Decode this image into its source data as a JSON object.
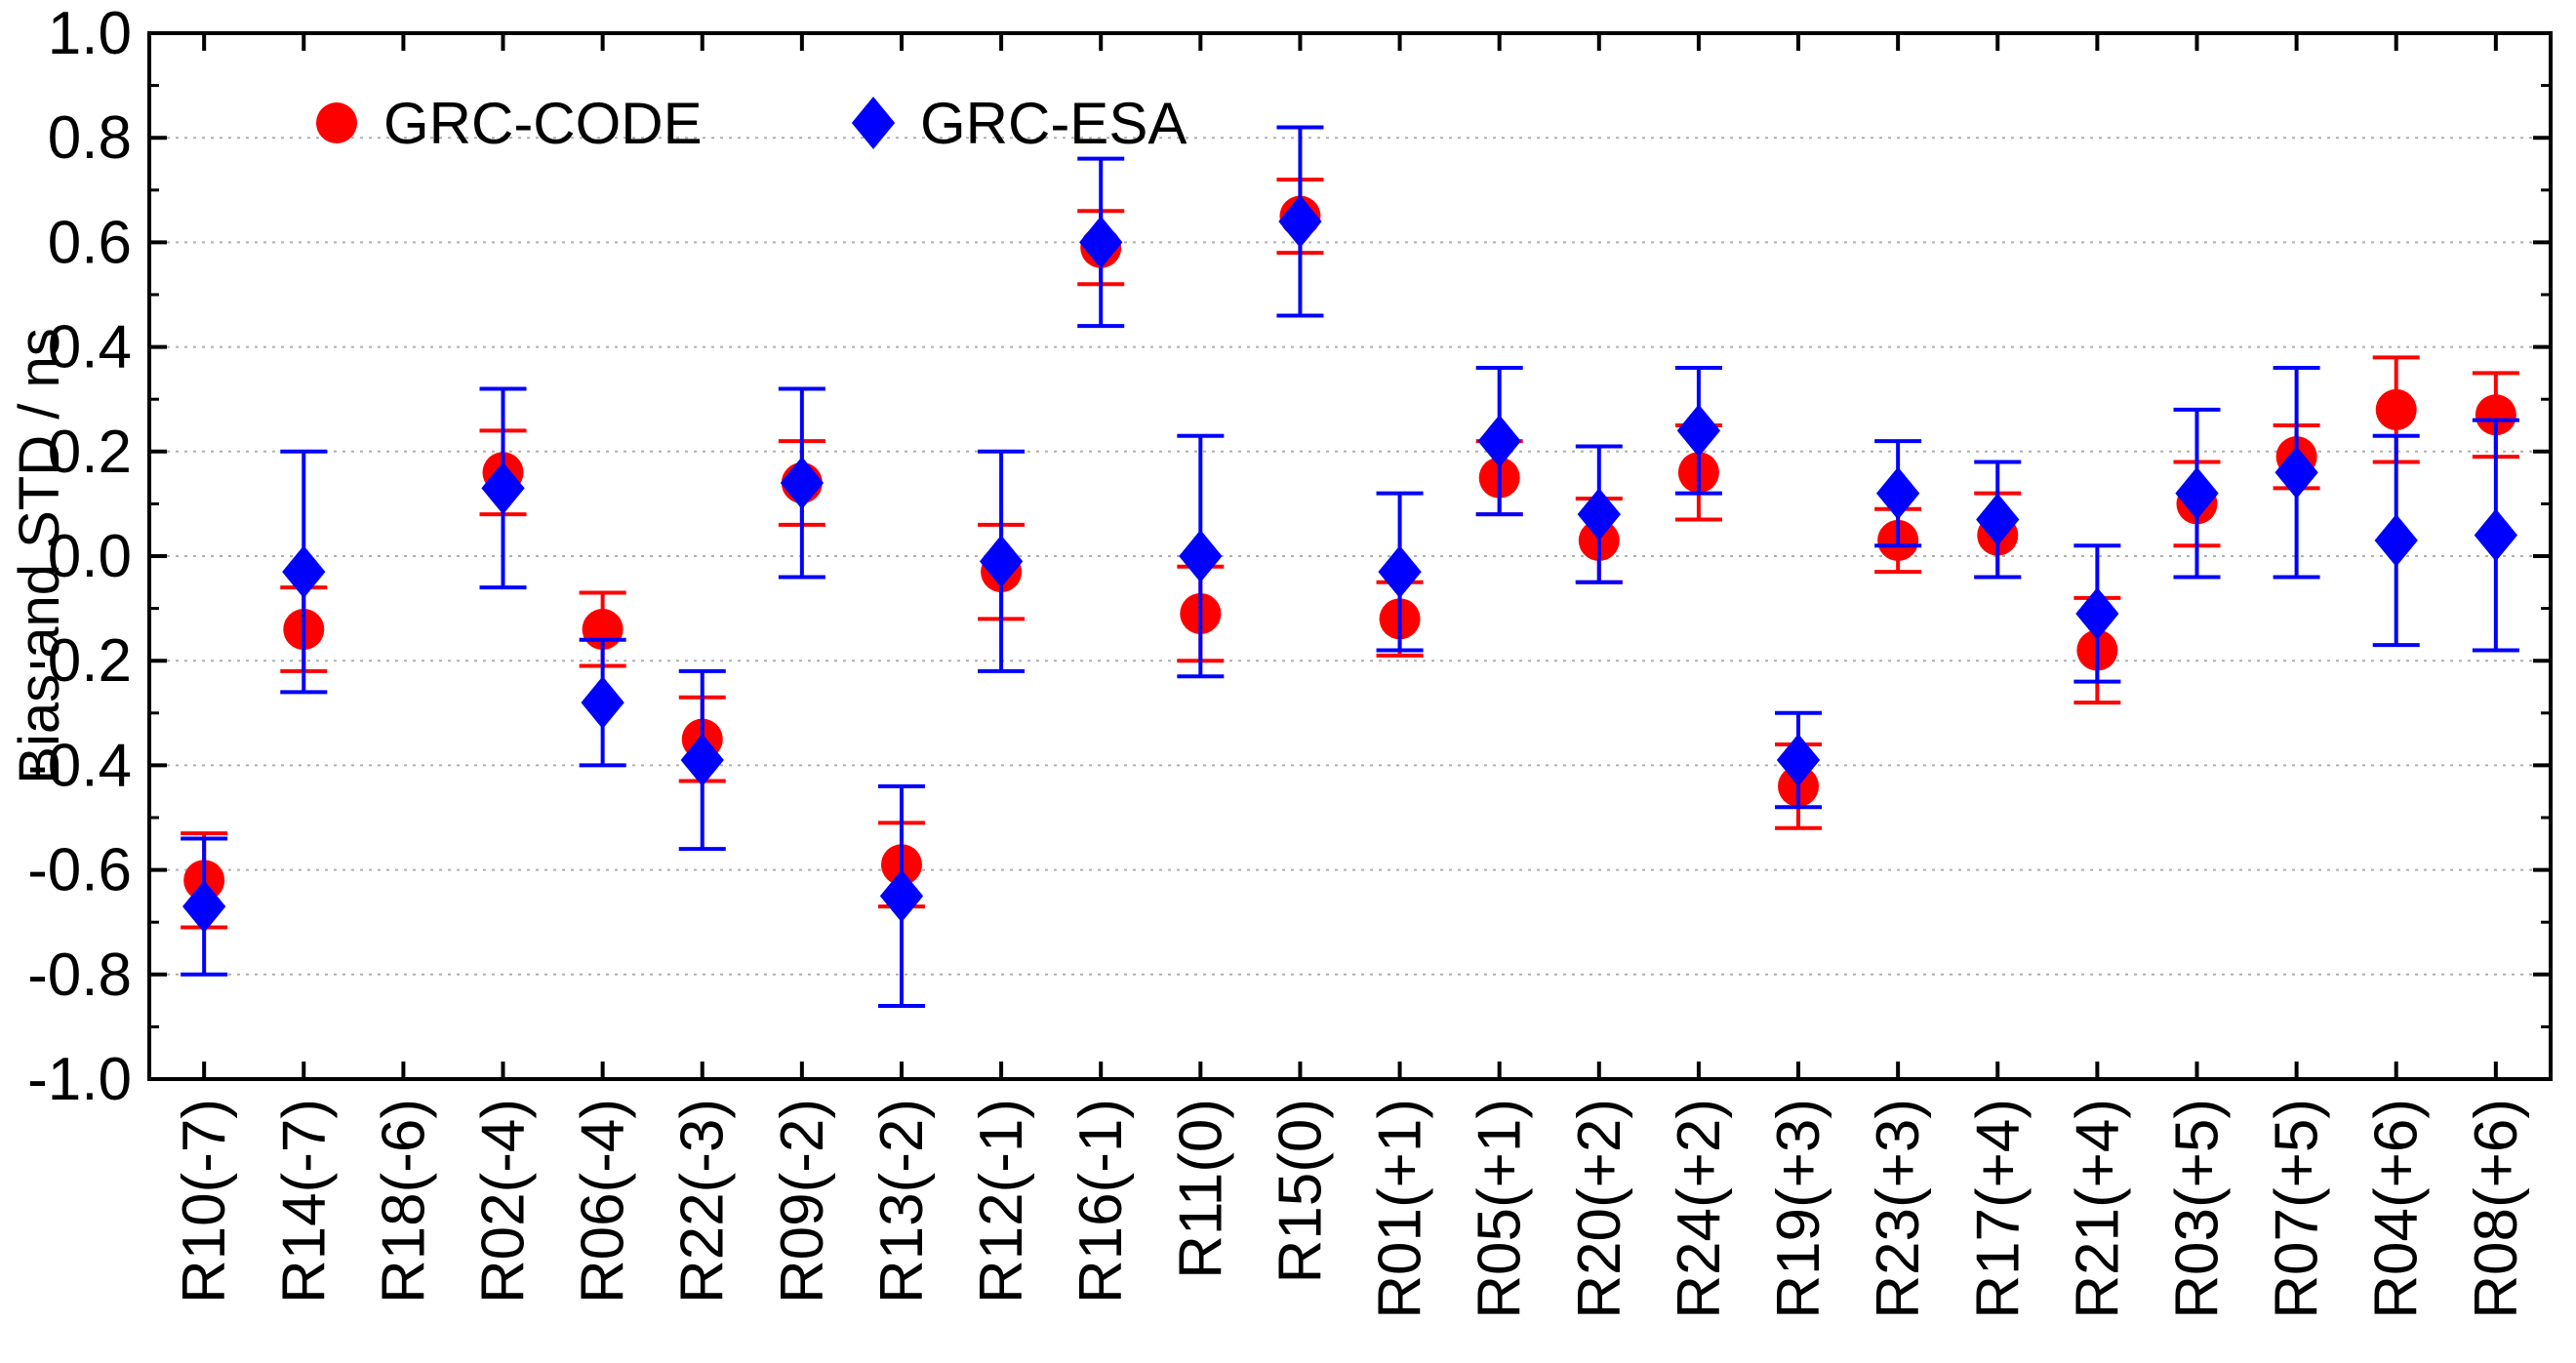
{
  "chart_data": {
    "type": "scatter",
    "title": "",
    "xlabel": "",
    "ylabel": "Bias and STD / ns",
    "ylim": [
      -1.0,
      1.0
    ],
    "yticks": [
      "1.0",
      "0.8",
      "0.6",
      "0.4",
      "0.2",
      "0.0",
      "-0.2",
      "-0.4",
      "-0.6",
      "-0.8",
      "-1.0"
    ],
    "ytick_values": [
      1.0,
      0.8,
      0.6,
      0.4,
      0.2,
      0.0,
      -0.2,
      -0.4,
      -0.6,
      -0.8,
      -1.0
    ],
    "grid": true,
    "legend_position": "top-left",
    "categories": [
      "R10(-7)",
      "R14(-7)",
      "R18(-6)",
      "R02(-4)",
      "R06(-4)",
      "R22(-3)",
      "R09(-2)",
      "R13(-2)",
      "R12(-1)",
      "R16(-1)",
      "R11(0)",
      "R15(0)",
      "R01(+1)",
      "R05(+1)",
      "R20(+2)",
      "R24(+2)",
      "R19(+3)",
      "R23(+3)",
      "R17(+4)",
      "R21(+4)",
      "R03(+5)",
      "R07(+5)",
      "R04(+6)",
      "R08(+6)"
    ],
    "series": [
      {
        "name": "GRC-CODE",
        "color": "#ff0000",
        "marker": "circle",
        "values": [
          -0.62,
          -0.14,
          null,
          0.16,
          -0.14,
          -0.35,
          0.14,
          -0.59,
          -0.03,
          0.59,
          -0.11,
          0.65,
          -0.12,
          0.15,
          0.03,
          0.16,
          -0.44,
          0.03,
          0.04,
          -0.18,
          0.1,
          0.19,
          0.28,
          0.27
        ],
        "std": [
          0.09,
          0.08,
          null,
          0.08,
          0.07,
          0.08,
          0.08,
          0.08,
          0.09,
          0.07,
          0.09,
          0.07,
          0.07,
          0.07,
          0.08,
          0.09,
          0.08,
          0.06,
          0.08,
          0.1,
          0.08,
          0.06,
          0.1,
          0.08
        ]
      },
      {
        "name": "GRC-ESA",
        "color": "#0000ff",
        "marker": "diamond",
        "values": [
          -0.67,
          -0.03,
          null,
          0.13,
          -0.28,
          -0.39,
          0.14,
          -0.65,
          -0.01,
          0.6,
          0.0,
          0.64,
          -0.03,
          0.22,
          0.08,
          0.24,
          -0.39,
          0.12,
          0.07,
          -0.11,
          0.12,
          0.16,
          0.03,
          0.04
        ],
        "std": [
          0.13,
          0.23,
          null,
          0.19,
          0.12,
          0.17,
          0.18,
          0.21,
          0.21,
          0.16,
          0.23,
          0.18,
          0.15,
          0.14,
          0.13,
          0.12,
          0.09,
          0.1,
          0.11,
          0.13,
          0.16,
          0.2,
          0.2,
          0.22
        ]
      }
    ]
  }
}
